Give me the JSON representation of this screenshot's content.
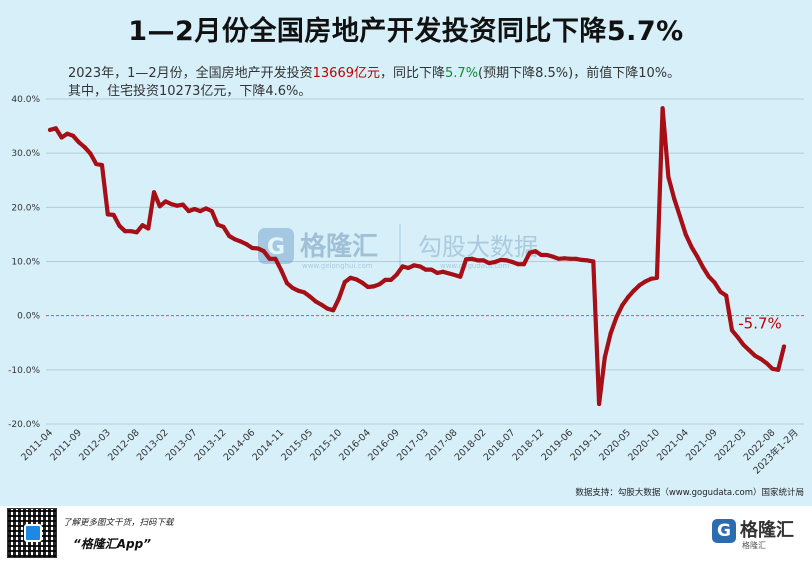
{
  "header": {
    "title": "1—2月份全国房地产开发投资同比下降5.7%",
    "line1_a": "2023年，1—2月份，全国房地产开发投资",
    "line1_b": "13669亿元",
    "line1_c": "，同比下降",
    "line1_d": "5.7%",
    "line1_e": "(预期下降8.5%)，前值下降10%。",
    "line2": "其中，住宅投资10273亿元，下降4.6%。"
  },
  "watermark": {
    "brand": "格隆汇",
    "partner": "勾股大数据",
    "url1": "www.gelonghui.com",
    "url2": "www.gogudata.com"
  },
  "source_note": "数据支持：勾股大数据（www.gogudata.com）国家统计局",
  "footer": {
    "promo": "了解更多图文干货，扫码下载",
    "app_name": "“格隆汇App”",
    "logo_glyph": "G",
    "logo_text": "格隆汇",
    "logo_sub": "格隆汇"
  },
  "colors": {
    "line": "#a50f15",
    "zero_line": "#e05050",
    "annotation": "#c00000",
    "background": "#d6eff9"
  },
  "chart_data": {
    "type": "line",
    "title": "",
    "ylim": [
      -20,
      40
    ],
    "yticks": [
      -20,
      -10,
      0,
      10,
      20,
      30,
      40
    ],
    "ytick_labels": [
      "-20.0%",
      "-10.0%",
      "0.0%",
      "10.0%",
      "20.0%",
      "30.0%",
      "40.0%"
    ],
    "xtick_labels": [
      "2011-04",
      "2011-09",
      "2012-03",
      "2012-08",
      "2013-02",
      "2013-07",
      "2013-12",
      "2014-06",
      "2014-11",
      "2015-05",
      "2015-10",
      "2016-04",
      "2016-09",
      "2017-03",
      "2017-08",
      "2018-02",
      "2018-07",
      "2018-12",
      "2019-06",
      "2019-11",
      "2020-05",
      "2020-10",
      "2021-04",
      "2021-09",
      "2022-03",
      "2022-08",
      "2023年1-2月"
    ],
    "xtick_index": [
      0,
      5,
      10,
      15,
      20,
      25,
      30,
      35,
      40,
      45,
      50,
      55,
      60,
      65,
      70,
      75,
      80,
      85,
      90,
      95,
      100,
      105,
      110,
      115,
      120,
      125,
      129
    ],
    "annotation": "-5.7%",
    "grid": true,
    "series": [
      {
        "values": [
          34.3,
          34.6,
          32.9,
          33.6,
          33.2,
          32,
          31.1,
          29.9,
          28,
          27.8,
          18.7,
          18.6,
          16.6,
          15.6,
          15.6,
          15.4,
          16.7,
          16.1,
          22.8,
          20.2,
          21.1,
          20.6,
          20.3,
          20.5,
          19.3,
          19.7,
          19.3,
          19.8,
          19.3,
          16.8,
          16.4,
          14.7,
          14.1,
          13.7,
          13.2,
          12.5,
          12.4,
          11.9,
          10.5,
          10.5,
          8.4,
          6,
          5.1,
          4.6,
          4.3,
          3.5,
          2.6,
          2,
          1.3,
          1,
          3.2,
          6.2,
          7,
          6.7,
          6.1,
          5.3,
          5.4,
          5.8,
          6.6,
          6.6,
          7.6,
          9.1,
          8.8,
          9.3,
          9.1,
          8.5,
          8.5,
          7.9,
          8.1,
          7.8,
          7.5,
          7.2,
          10.4,
          10.5,
          10.2,
          10.2,
          9.7,
          9.9,
          10.3,
          10.2,
          9.9,
          9.5,
          9.5,
          11.6,
          11.9,
          11.2,
          11.2,
          10.9,
          10.5,
          10.6,
          10.5,
          10.5,
          10.3,
          10.2,
          10,
          -16.3,
          -7.7,
          -3.3,
          -0.3,
          1.9,
          3.4,
          4.6,
          5.6,
          6.3,
          6.8,
          7,
          38.3,
          25.6,
          21.6,
          18.3,
          15,
          12.7,
          10.9,
          8.9,
          7.2,
          6.1,
          4.4,
          3.7,
          -2.7,
          -4,
          -5.4,
          -6.4,
          -7.4,
          -8,
          -8.8,
          -9.8,
          -10,
          -5.7
        ]
      }
    ]
  }
}
